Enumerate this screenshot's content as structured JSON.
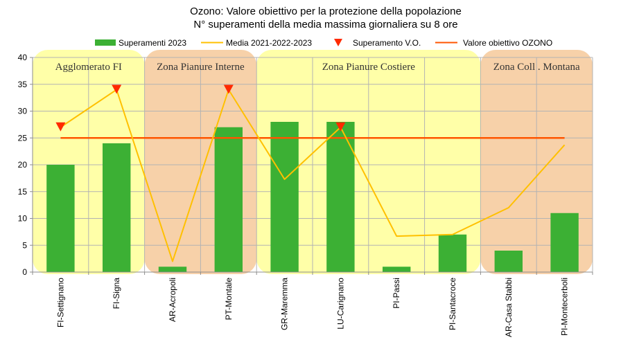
{
  "chart_data": {
    "type": "bar",
    "title": "Ozono: Valore obiettivo per la protezione della popolazione",
    "subtitle": "N° superamenti della media massima giornaliera su 8 ore",
    "xlabel": "",
    "ylabel": "",
    "ylim": [
      0,
      40
    ],
    "yticks": [
      0,
      5,
      10,
      15,
      20,
      25,
      30,
      35,
      40
    ],
    "grid": true,
    "legend_position": "top",
    "categories": [
      "FI-Settignano",
      "FI-Signa",
      "AR-Acropoli",
      "PT-Montale",
      "GR-Maremma",
      "LU-Carignano",
      "PI-Passi",
      "PI-Santacroce",
      "AR-Casa Stabbi",
      "PI-Montecerboli"
    ],
    "series": [
      {
        "name": "Superamenti 2023",
        "kind": "bar",
        "color": "#3cb034",
        "values": [
          20,
          24,
          1,
          27,
          28,
          28,
          1,
          7,
          4,
          11
        ]
      },
      {
        "name": "Media 2021-2022-2023",
        "kind": "line",
        "color": "#ffc000",
        "values": [
          27,
          34,
          2,
          34,
          17.3,
          27,
          6.7,
          7,
          12,
          23.7
        ]
      },
      {
        "name": "Superamento V.O.",
        "kind": "marker",
        "color": "#ff2a00",
        "values": [
          27,
          34,
          null,
          34,
          null,
          27,
          null,
          null,
          null,
          null
        ]
      },
      {
        "name": "Valore obiettivo OZONO",
        "kind": "hline",
        "color": "#ff5500",
        "value": 25
      }
    ],
    "zones": [
      {
        "label": "Agglomerato FI",
        "from": 0,
        "to": 1,
        "color": "#ffff99"
      },
      {
        "label": "Zona Pianure Interne",
        "from": 2,
        "to": 3,
        "color": "#f6c99a"
      },
      {
        "label": "Zona Pianure  Costiere",
        "from": 4,
        "to": 7,
        "color": "#ffff99"
      },
      {
        "label": "Zona Coll . Montana",
        "from": 8,
        "to": 9,
        "color": "#f6c99a"
      }
    ]
  }
}
